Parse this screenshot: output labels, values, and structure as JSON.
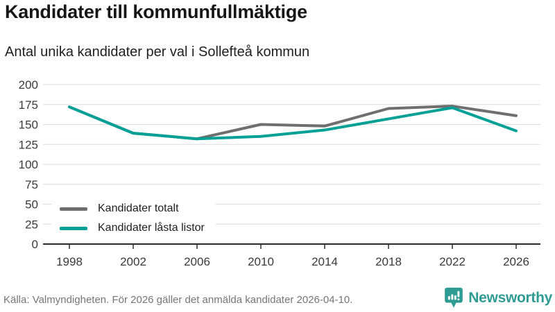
{
  "header": {
    "title": "Kandidater till kommunfullmäktige",
    "subtitle": "Antal unika kandidater per val i Sollefteå kommun"
  },
  "chart_data": {
    "type": "line",
    "title": "Kandidater till kommunfullmäktige",
    "subtitle": "Antal unika kandidater per val i Sollefteå kommun",
    "categories": [
      "1998",
      "2002",
      "2006",
      "2010",
      "2014",
      "2018",
      "2022",
      "2026"
    ],
    "series": [
      {
        "name": "Kandidater totalt",
        "color": "#6f6f6f",
        "values": [
          172,
          139,
          132,
          150,
          148,
          170,
          173,
          161
        ]
      },
      {
        "name": "Kandidater låsta listor",
        "color": "#00a096",
        "values": [
          172,
          139,
          132,
          135,
          143,
          157,
          171,
          142
        ]
      }
    ],
    "xlabel": "",
    "ylabel": "",
    "ylim": [
      0,
      200
    ],
    "yticks": [
      0,
      25,
      50,
      75,
      100,
      125,
      150,
      175,
      200
    ],
    "grid": true,
    "grid_color": "#dcdcdc",
    "axis_color": "#2b2b2b",
    "tick_label_color": "#3a3a3a",
    "legend_position": "bottom-left-inside"
  },
  "footer": {
    "source": "Källa: Valmyndigheten. För 2026 gäller det anmälda kandidater 2026-04-10.",
    "brand": "Newsworthy",
    "brand_color": "#2f9c94"
  }
}
